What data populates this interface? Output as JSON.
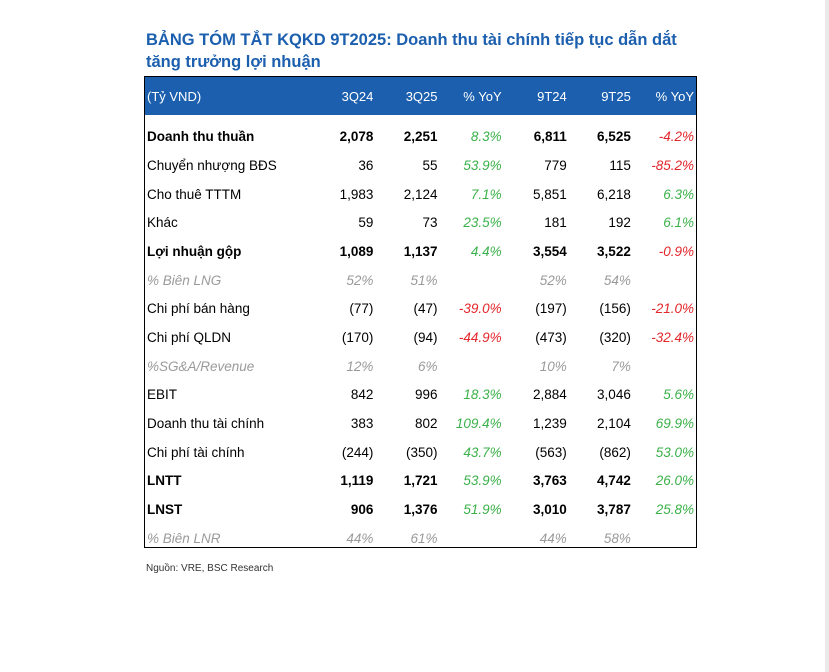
{
  "title": "BẢNG TÓM TẮT KQKD 9T2025: Doanh thu tài chính tiếp tục dẫn dắt tăng trưởng lợi nhuận",
  "colors": {
    "accent": "#1b5fae",
    "positive": "#3bb14a",
    "negative": "#e3262b",
    "muted": "#9a9a9a"
  },
  "table": {
    "headers": [
      "(Tỷ VND)",
      "3Q24",
      "3Q25",
      "% YoY",
      "9T24",
      "9T25",
      "% YoY"
    ],
    "rows": [
      {
        "style": "bold",
        "cells": [
          "Doanh thu thuần",
          "2,078",
          "2,251",
          "8.3%",
          "6,811",
          "6,525",
          "-4.2%"
        ]
      },
      {
        "style": "normal",
        "cells": [
          "Chuyển nhượng BĐS",
          "36",
          "55",
          "53.9%",
          "779",
          "115",
          "-85.2%"
        ]
      },
      {
        "style": "normal",
        "cells": [
          "Cho thuê TTTM",
          "1,983",
          "2,124",
          "7.1%",
          "5,851",
          "6,218",
          "6.3%"
        ]
      },
      {
        "style": "normal",
        "cells": [
          "Khác",
          "59",
          "73",
          "23.5%",
          "181",
          "192",
          "6.1%"
        ]
      },
      {
        "style": "bold",
        "cells": [
          "Lợi nhuận gộp",
          "1,089",
          "1,137",
          "4.4%",
          "3,554",
          "3,522",
          "-0.9%"
        ]
      },
      {
        "style": "italic",
        "cells": [
          "% Biên LNG",
          "52%",
          "51%",
          "",
          "52%",
          "54%",
          ""
        ]
      },
      {
        "style": "normal",
        "cells": [
          "Chi phí bán hàng",
          "(77)",
          "(47)",
          "-39.0%",
          "(197)",
          "(156)",
          "-21.0%"
        ]
      },
      {
        "style": "normal",
        "cells": [
          "Chi phí QLDN",
          "(170)",
          "(94)",
          "-44.9%",
          "(473)",
          "(320)",
          "-32.4%"
        ]
      },
      {
        "style": "italic",
        "cells": [
          "%SG&A/Revenue",
          "12%",
          "6%",
          "",
          "10%",
          "7%",
          ""
        ]
      },
      {
        "style": "normal",
        "cells": [
          "EBIT",
          "842",
          "996",
          "18.3%",
          "2,884",
          "3,046",
          "5.6%"
        ]
      },
      {
        "style": "normal",
        "cells": [
          "Doanh thu tài chính",
          "383",
          "802",
          "109.4%",
          "1,239",
          "2,104",
          "69.9%"
        ]
      },
      {
        "style": "normal",
        "cells": [
          "Chi phí tài chính",
          "(244)",
          "(350)",
          "43.7%",
          "(563)",
          "(862)",
          "53.0%"
        ]
      },
      {
        "style": "bold",
        "cells": [
          "LNTT",
          "1,119",
          "1,721",
          "53.9%",
          "3,763",
          "4,742",
          "26.0%"
        ]
      },
      {
        "style": "bold",
        "cells": [
          "LNST",
          "906",
          "1,376",
          "51.9%",
          "3,010",
          "3,787",
          "25.8%"
        ]
      },
      {
        "style": "italic",
        "cells": [
          "% Biên LNR",
          "44%",
          "61%",
          "",
          "44%",
          "58%",
          ""
        ]
      }
    ]
  },
  "source": "Nguồn: VRE, BSC Research"
}
